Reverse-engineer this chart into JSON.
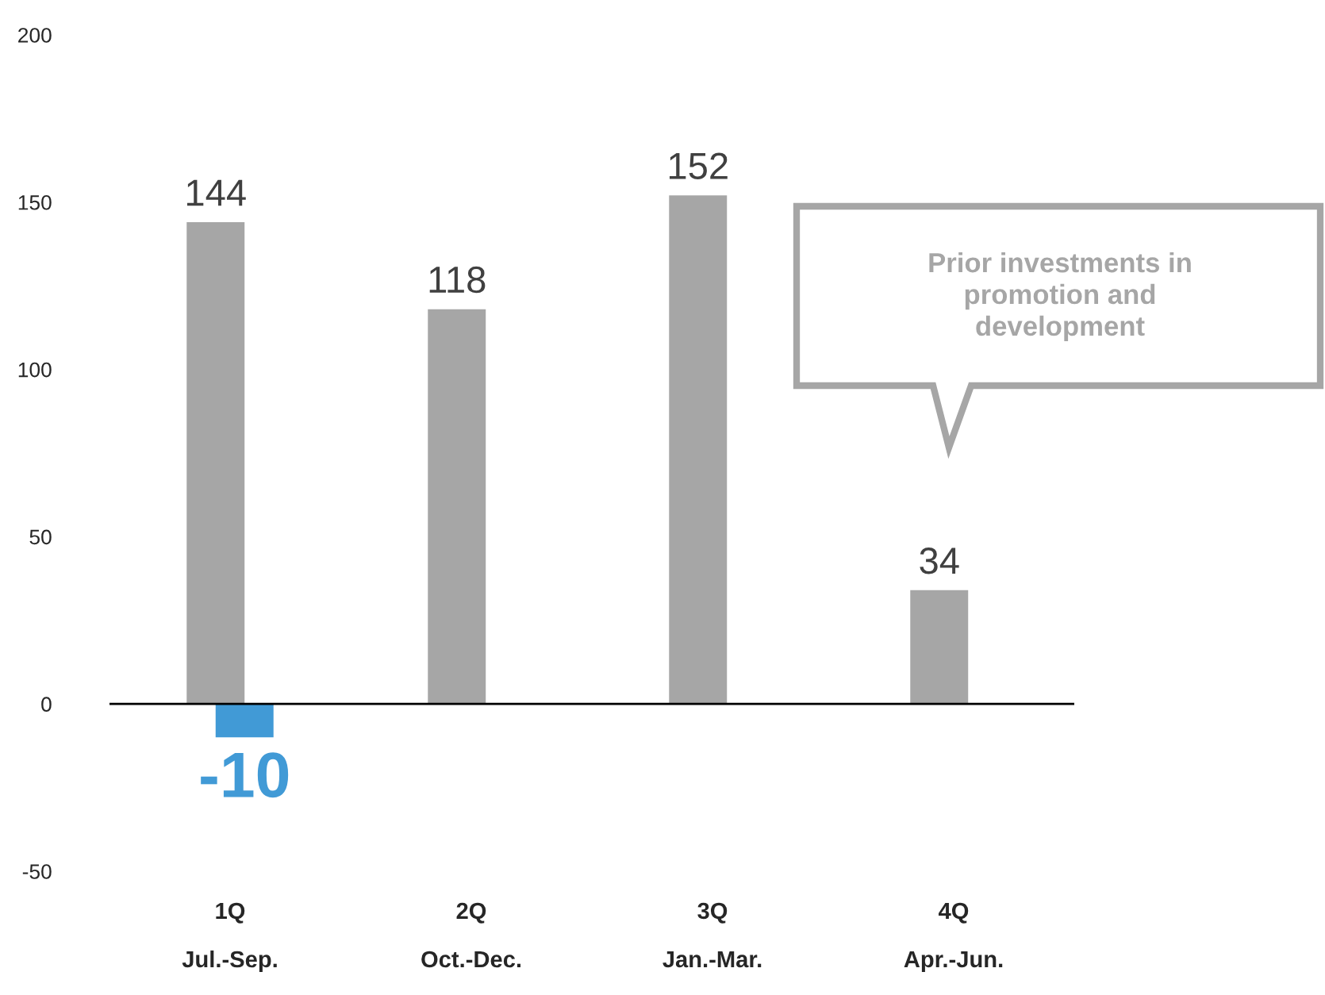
{
  "chart_data": {
    "type": "bar",
    "categories": [
      "1Q\nJul.-Sep.",
      "2Q\nOct.-Dec.",
      "3Q\nJan.-Mar.",
      "4Q\nApr.-Jun."
    ],
    "series": [
      {
        "color": "#a6a6a6",
        "values": [
          144,
          118,
          152,
          34
        ]
      },
      {
        "color": "#419ad6",
        "values": [
          -10,
          null,
          null,
          null
        ]
      }
    ],
    "ylim": [
      -50,
      200
    ],
    "yticks": [
      -50,
      0,
      50,
      100,
      150,
      200
    ],
    "ref_lines": [
      {
        "axis": "y",
        "value": 0,
        "color": "#000000"
      }
    ],
    "legend": false,
    "data_labels": true,
    "annotations": [
      "Prior investments in\npromotion and\ndevelopment"
    ]
  }
}
